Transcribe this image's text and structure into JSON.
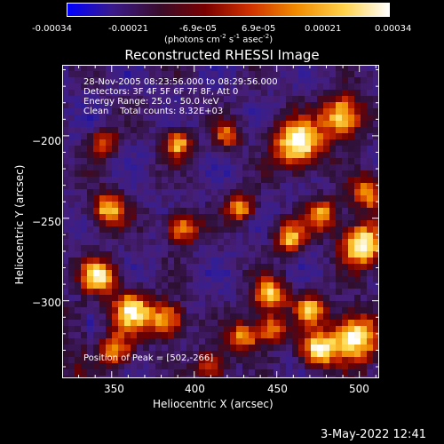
{
  "colorbar": {
    "labels": [
      "-0.00034",
      "-0.00021",
      "-6.9e-05",
      "6.9e-05",
      "0.00021",
      "0.00034"
    ],
    "values": [
      -0.00034,
      -0.00021,
      -6.9e-05,
      6.9e-05,
      0.00021,
      0.00034
    ],
    "units_pre": "(photons cm",
    "units_exp1": "-2",
    "units_mid1": " s",
    "units_exp2": "-1",
    "units_mid2": " asec",
    "units_exp3": "-2",
    "units_post": ")",
    "colors": [
      "#0000ff",
      "#3a1a8a",
      "#3a0c2a",
      "#7a0000",
      "#d23200",
      "#f08a00",
      "#ffd24a",
      "#ffffff"
    ]
  },
  "chart_data": {
    "type": "heatmap",
    "title": "Reconstructed RHESSI Image",
    "xlabel": "Heliocentric X (arcsec)",
    "ylabel": "Heliocentric Y (arcsec)",
    "xlim": [
      320,
      512
    ],
    "ylim": [
      -347,
      -157
    ],
    "xticks": [
      350,
      400,
      450,
      500
    ],
    "yticks": [
      -200,
      -250,
      -300
    ],
    "xtick_labels": [
      "350",
      "400",
      "450",
      "500"
    ],
    "ytick_labels": [
      "−200",
      "−250",
      "−300"
    ],
    "peak": [
      502,
      -266
    ]
  },
  "annotations": {
    "line1": "28-Nov-2005 08:23:56.000 to 08:29:56.000",
    "line2": "Detectors: 3F 4F 5F 6F 7F 8F, Att 0",
    "line3": "Energy Range: 25.0 - 50.0 keV",
    "line4": "Clean    Total counts: 8.32E+03",
    "peak_text": "Position of Peak = [502,-266]"
  },
  "timestamp": "3-May-2022 12:41"
}
